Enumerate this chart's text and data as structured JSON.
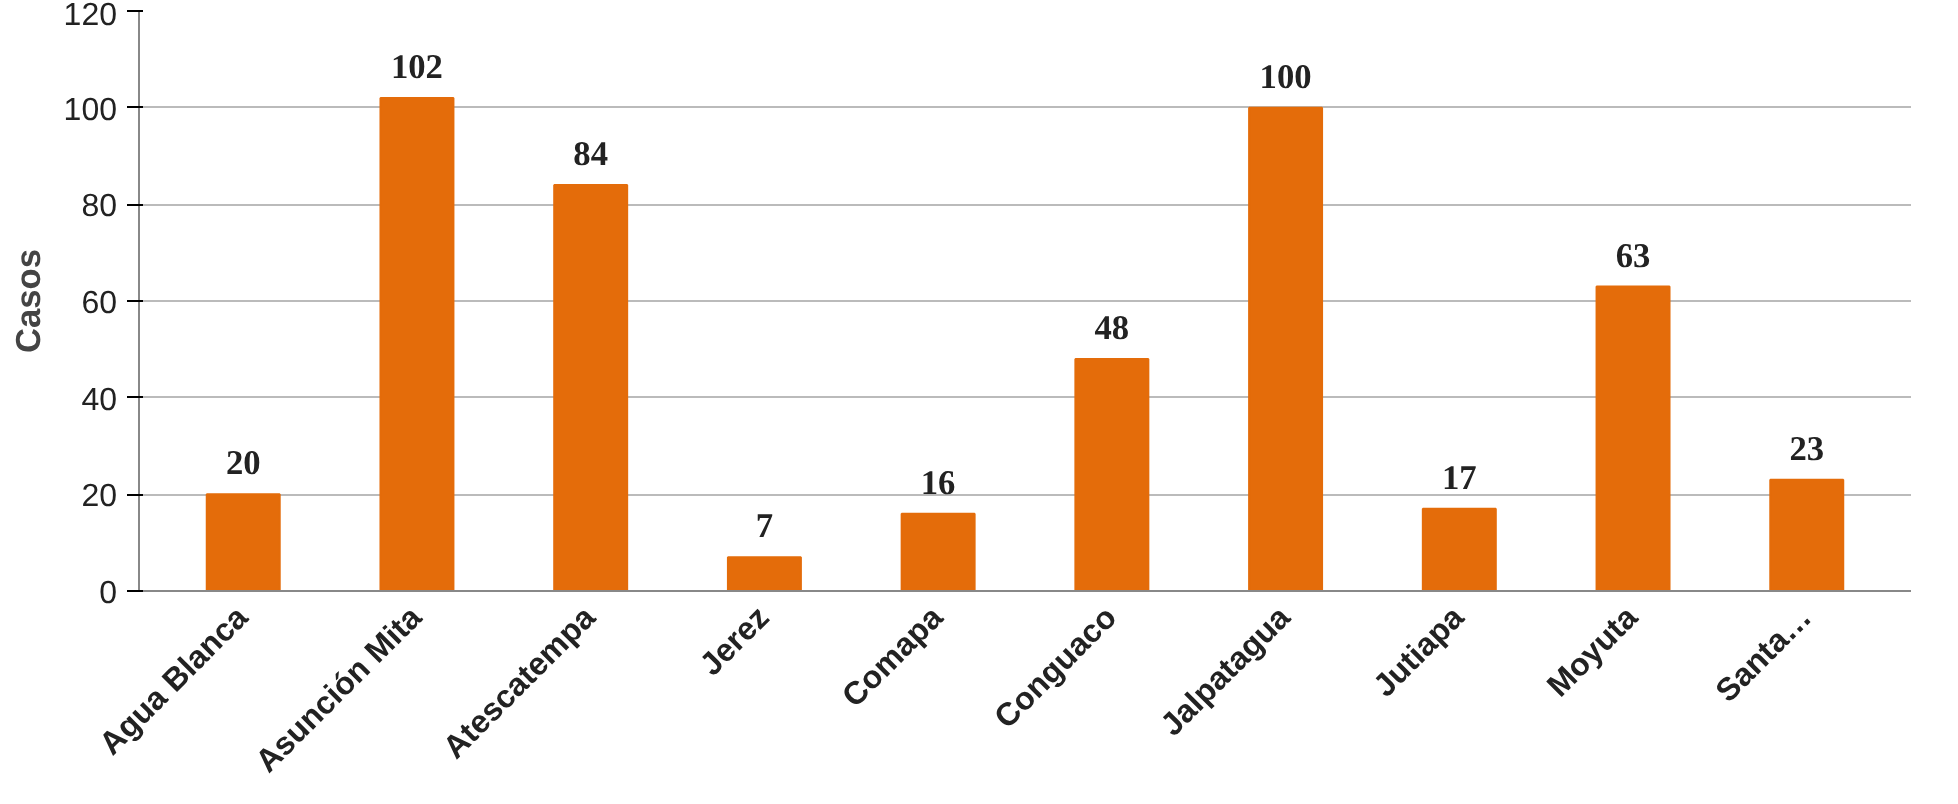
{
  "chart_data": {
    "type": "bar",
    "ylabel": "Casos",
    "categories": [
      "Agua Blanca",
      "Asunción Mita",
      "Atescatempa",
      "Jerez",
      "Comapa",
      "Conguaco",
      "Jalpatagua",
      "Jutiapa",
      "Moyuta",
      "Santa…"
    ],
    "values": [
      20,
      102,
      84,
      7,
      16,
      48,
      100,
      17,
      63,
      23
    ],
    "color": "#e46c0a",
    "ylim": [
      0,
      120
    ],
    "yticks": [
      0,
      20,
      40,
      60,
      80,
      100,
      120
    ],
    "grid": "y",
    "data_labels": true
  }
}
